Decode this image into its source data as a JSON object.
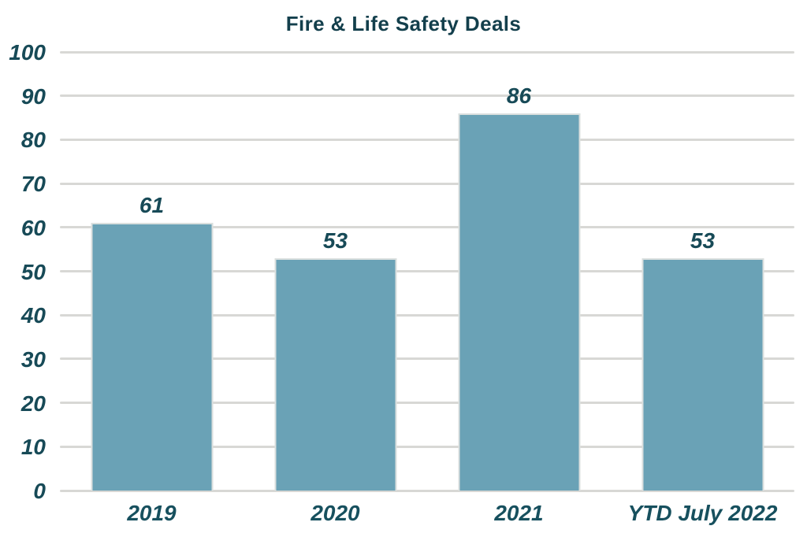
{
  "title": "Fire & Life Safety Deals",
  "colors": {
    "background": "#FFFFFF",
    "bar_fill": "#6AA2B6",
    "bar_border": "#DADFDE",
    "gridline": "#D8D8D5",
    "title_text": "#133F4C",
    "axis_text": "#174A57"
  },
  "chart_data": {
    "type": "bar",
    "title": "Fire & Life Safety Deals",
    "categories": [
      "2019",
      "2020",
      "2021",
      "YTD July 2022"
    ],
    "values": [
      61,
      53,
      86,
      53
    ],
    "data_labels": [
      "61",
      "53",
      "86",
      "53"
    ],
    "xlabel": "",
    "ylabel": "",
    "ylim": [
      0,
      100
    ],
    "ytick_step": 10,
    "ytick_labels": [
      "0",
      "10",
      "20",
      "30",
      "40",
      "50",
      "60",
      "70",
      "80",
      "90",
      "100"
    ],
    "grid": true,
    "gridlines_horizontal": true,
    "legend": false,
    "bar_label_position": "above"
  }
}
